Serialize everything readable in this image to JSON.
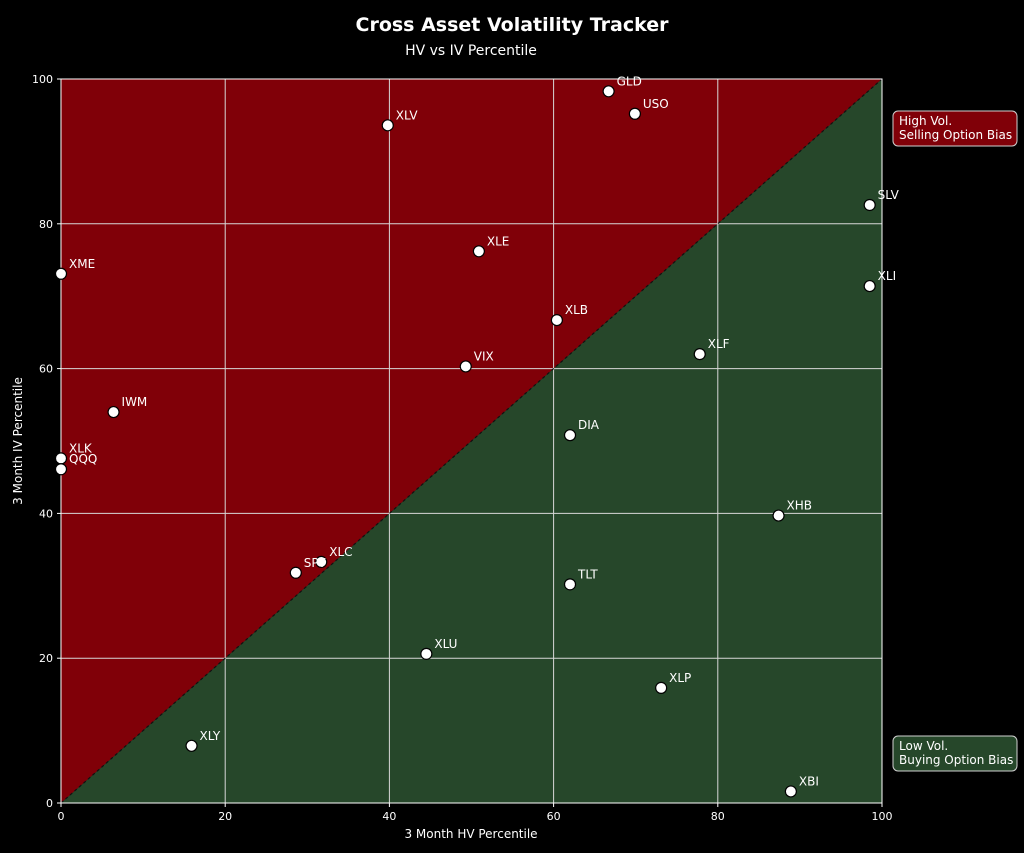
{
  "chart_data": {
    "type": "scatter",
    "title": "Cross Asset Volatility Tracker",
    "subtitle": "HV vs IV Percentile",
    "xlabel": "3 Month HV Percentile",
    "ylabel": "3 Month IV Percentile",
    "xlim": [
      0,
      100
    ],
    "ylim": [
      0,
      100
    ],
    "xticks": [
      "0",
      "20",
      "40",
      "60",
      "80",
      "100"
    ],
    "yticks": [
      "0",
      "20",
      "40",
      "60",
      "80",
      "100"
    ],
    "grid": true,
    "regions": [
      {
        "name": "High Vol.\nSelling Option Bias",
        "lines": [
          "High Vol.",
          "Selling Option Bias"
        ],
        "area": "above-diagonal",
        "color": "#800008"
      },
      {
        "name": "Low Vol.\nBuying Option Bias",
        "lines": [
          "Low Vol.",
          "Buying Option Bias"
        ],
        "area": "below-diagonal",
        "color": "#26472a"
      }
    ],
    "diagonal": {
      "from": [
        0,
        0
      ],
      "to": [
        100,
        100
      ],
      "style": "dashed"
    },
    "points": [
      {
        "label": "GLD",
        "x": 66.7,
        "y": 98.3
      },
      {
        "label": "USO",
        "x": 69.9,
        "y": 95.2
      },
      {
        "label": "XLV",
        "x": 39.8,
        "y": 93.6
      },
      {
        "label": "SLV",
        "x": 98.5,
        "y": 82.6
      },
      {
        "label": "XLE",
        "x": 50.9,
        "y": 76.2
      },
      {
        "label": "XME",
        "x": 0.0,
        "y": 73.1
      },
      {
        "label": "XLI",
        "x": 98.5,
        "y": 71.4
      },
      {
        "label": "XLB",
        "x": 60.4,
        "y": 66.7
      },
      {
        "label": "XLF",
        "x": 77.8,
        "y": 62.0
      },
      {
        "label": "VIX",
        "x": 49.3,
        "y": 60.3
      },
      {
        "label": "IWM",
        "x": 6.4,
        "y": 54.0
      },
      {
        "label": "DIA",
        "x": 62.0,
        "y": 50.8
      },
      {
        "label": "XLK",
        "x": 0.0,
        "y": 47.6
      },
      {
        "label": "QQQ",
        "x": 0.0,
        "y": 46.1
      },
      {
        "label": "XHB",
        "x": 87.4,
        "y": 39.7
      },
      {
        "label": "XLC",
        "x": 31.7,
        "y": 33.3
      },
      {
        "label": "SPY",
        "x": 28.6,
        "y": 31.8
      },
      {
        "label": "TLT",
        "x": 62.0,
        "y": 30.2
      },
      {
        "label": "XLU",
        "x": 44.5,
        "y": 20.6
      },
      {
        "label": "XLP",
        "x": 73.1,
        "y": 15.9
      },
      {
        "label": "XLY",
        "x": 15.9,
        "y": 7.9
      },
      {
        "label": "XBI",
        "x": 88.9,
        "y": 1.6
      }
    ]
  }
}
